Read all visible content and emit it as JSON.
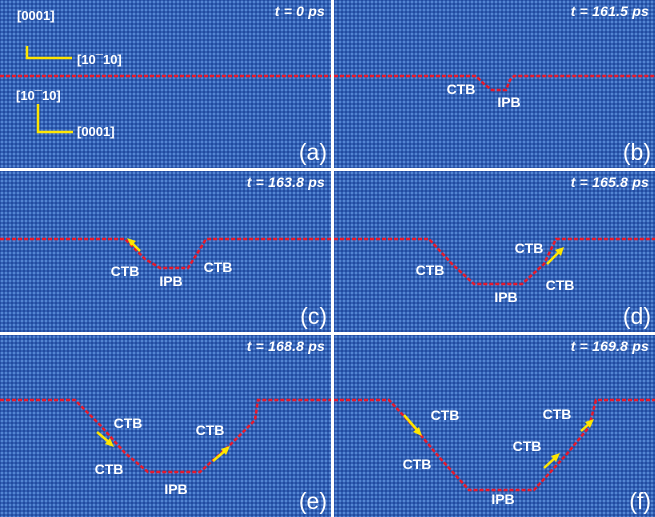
{
  "panels": [
    {
      "time": "t = 0 ps",
      "label": "(a)"
    },
    {
      "time": "t = 161.5 ps",
      "label": "(b)"
    },
    {
      "time": "t = 163.8 ps",
      "label": "(c)"
    },
    {
      "time": "t = 165.8 ps",
      "label": "(d)"
    },
    {
      "time": "t = 168.8 ps",
      "label": "(e)"
    },
    {
      "time": "t = 169.8 ps",
      "label": "(f)"
    }
  ],
  "directions": {
    "top_vertical": "[0001]",
    "top_horizontal": "[10¯10]",
    "bottom_vertical": "[10¯10]",
    "bottom_horizontal": "[0001]"
  },
  "boundary_labels": {
    "ctb": "CTB",
    "ipb": "IPB"
  },
  "colors": {
    "boundary": "#e8182a",
    "arrow": "#ffe600",
    "background": "#2a5bb4"
  }
}
